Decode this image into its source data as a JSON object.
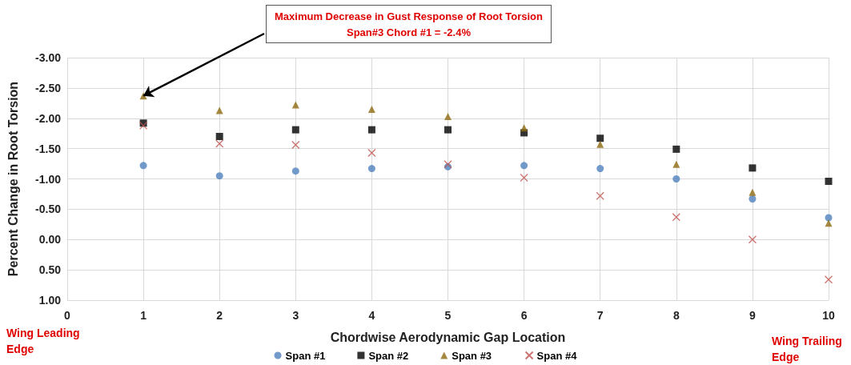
{
  "chart_data": {
    "type": "scatter",
    "xlabel": "Chordwise Aerodynamic Gap Location",
    "ylabel": "Percent Change in Root Torsion",
    "x": [
      1,
      2,
      3,
      4,
      5,
      6,
      7,
      8,
      9,
      10
    ],
    "series": [
      {
        "name": "Span #1",
        "color": "#4f81bd",
        "marker": "circle",
        "values": [
          -1.22,
          -1.05,
          -1.13,
          -1.17,
          -1.2,
          -1.22,
          -1.17,
          -1.0,
          -0.67,
          -0.36
        ]
      },
      {
        "name": "Span #2",
        "color": "#000000",
        "marker": "square",
        "values": [
          -1.92,
          -1.7,
          -1.81,
          -1.81,
          -1.81,
          -1.76,
          -1.67,
          -1.49,
          -1.18,
          -0.96
        ]
      },
      {
        "name": "Span #3",
        "color": "#8f6a10",
        "marker": "triangle",
        "values": [
          -2.37,
          -2.13,
          -2.22,
          -2.15,
          -2.03,
          -1.84,
          -1.57,
          -1.24,
          -0.78,
          -0.27
        ]
      },
      {
        "name": "Span #4",
        "color": "#c0504d",
        "marker": "cross",
        "values": [
          -1.88,
          -1.58,
          -1.56,
          -1.43,
          -1.24,
          -1.02,
          -0.72,
          -0.37,
          0.0,
          0.66
        ]
      }
    ],
    "xlim": [
      0,
      10
    ],
    "xticks": [
      0,
      1,
      2,
      3,
      4,
      5,
      6,
      7,
      8,
      9,
      10
    ],
    "ylim": [
      1,
      -3
    ],
    "yticks": [
      {
        "value": -3,
        "label": "-3.00"
      },
      {
        "value": -2.5,
        "label": "-2.50"
      },
      {
        "value": -2,
        "label": "-2.00"
      },
      {
        "value": -1.5,
        "label": "-1.50"
      },
      {
        "value": -1,
        "label": "-1.00"
      },
      {
        "value": -0.5,
        "label": "-0.50"
      },
      {
        "value": 0,
        "label": "0.00"
      },
      {
        "value": 0.5,
        "label": "0.50"
      },
      {
        "value": 1,
        "label": "1.00"
      }
    ],
    "grid": true,
    "legend": "bottom",
    "annotations": [
      {
        "text": "Maximum Decrease in Gust Response of Root Torsion\nSpan#3 Chord #1 = -2.4%",
        "x": 1,
        "y": -2.37
      },
      "Wing Leading Edge",
      "Wing Trailing Edge"
    ]
  }
}
